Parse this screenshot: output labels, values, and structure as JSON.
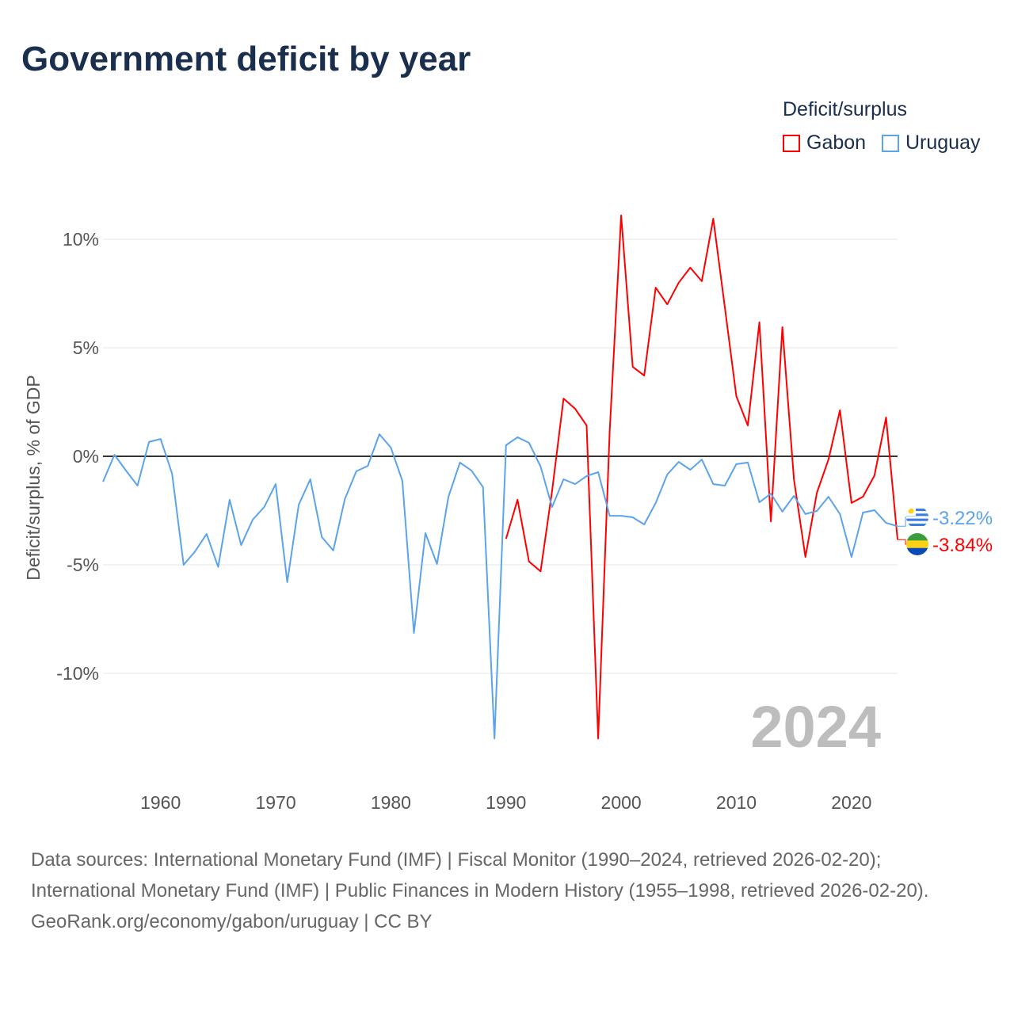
{
  "title": "Government deficit by year",
  "legend": {
    "title": "Deficit/surplus",
    "items": [
      "Gabon",
      "Uruguay"
    ]
  },
  "watermark_year": "2024",
  "sources": {
    "line1": "Data sources: International Monetary Fund (IMF) | Fiscal Monitor (1990–2024, retrieved 2026-02-20);",
    "line2": "International Monetary Fund (IMF) | Public Finances in Modern History (1955–1998, retrieved 2026-02-20).",
    "line3": "GeoRank.org/economy/gabon/uruguay | CC BY"
  },
  "chart_data": {
    "type": "line",
    "title": "Government deficit by year",
    "xlabel": "",
    "ylabel": "Deficit/surplus, % of GDP",
    "xlim": [
      1955,
      2024
    ],
    "ylim": [
      -14.9,
      12.3
    ],
    "x_ticks": [
      1960,
      1970,
      1980,
      1990,
      2000,
      2010,
      2020
    ],
    "y_ticks": [
      {
        "v": -10,
        "label": "-10%"
      },
      {
        "v": -5,
        "label": "-5%"
      },
      {
        "v": 0,
        "label": "0%"
      },
      {
        "v": 5,
        "label": "5%"
      },
      {
        "v": 10,
        "label": "10%"
      }
    ],
    "grid": true,
    "legend_position": "top-right",
    "series": [
      {
        "name": "Gabon",
        "color": "#ff0000",
        "start_year": 1990,
        "end_label": "-3.84%",
        "values": [
          -3.8,
          -2.0,
          -4.85,
          -5.3,
          -1.6,
          2.66,
          2.19,
          1.42,
          -13.0,
          1.13,
          11.1,
          4.12,
          3.72,
          7.77,
          7.0,
          8.0,
          8.69,
          8.07,
          10.95,
          6.86,
          2.77,
          1.42,
          6.17,
          -3.0,
          5.95,
          -1.06,
          -4.64,
          -1.68,
          -0.15,
          2.12,
          -2.15,
          -1.86,
          -0.88,
          1.79,
          -3.84
        ]
      },
      {
        "name": "Uruguay",
        "color": "#5ba3ea",
        "start_year": 1955,
        "end_label": "-3.22%",
        "values": [
          -1.17,
          0.07,
          -0.66,
          -1.35,
          0.66,
          0.8,
          -0.8,
          -5.0,
          -4.38,
          -3.58,
          -5.1,
          -2.0,
          -4.09,
          -2.92,
          -2.34,
          -1.28,
          -5.8,
          -2.23,
          -1.06,
          -3.72,
          -4.34,
          -1.97,
          -0.69,
          -0.44,
          1.02,
          0.4,
          -1.13,
          -8.14,
          -3.54,
          -4.96,
          -1.86,
          -0.29,
          -0.66,
          -1.42,
          -13.0,
          0.51,
          0.88,
          0.62,
          -0.47,
          -2.34,
          -1.06,
          -1.28,
          -0.91,
          -0.73,
          -2.74,
          -2.74,
          -2.81,
          -3.14,
          -2.15,
          -0.84,
          -0.26,
          -0.62,
          -0.15,
          -1.28,
          -1.35,
          -0.36,
          -0.29,
          -2.12,
          -1.72,
          -2.55,
          -1.82,
          -2.66,
          -2.52,
          -1.86,
          -2.66,
          -4.64,
          -2.59,
          -2.48,
          -3.07,
          -3.22
        ]
      }
    ]
  }
}
